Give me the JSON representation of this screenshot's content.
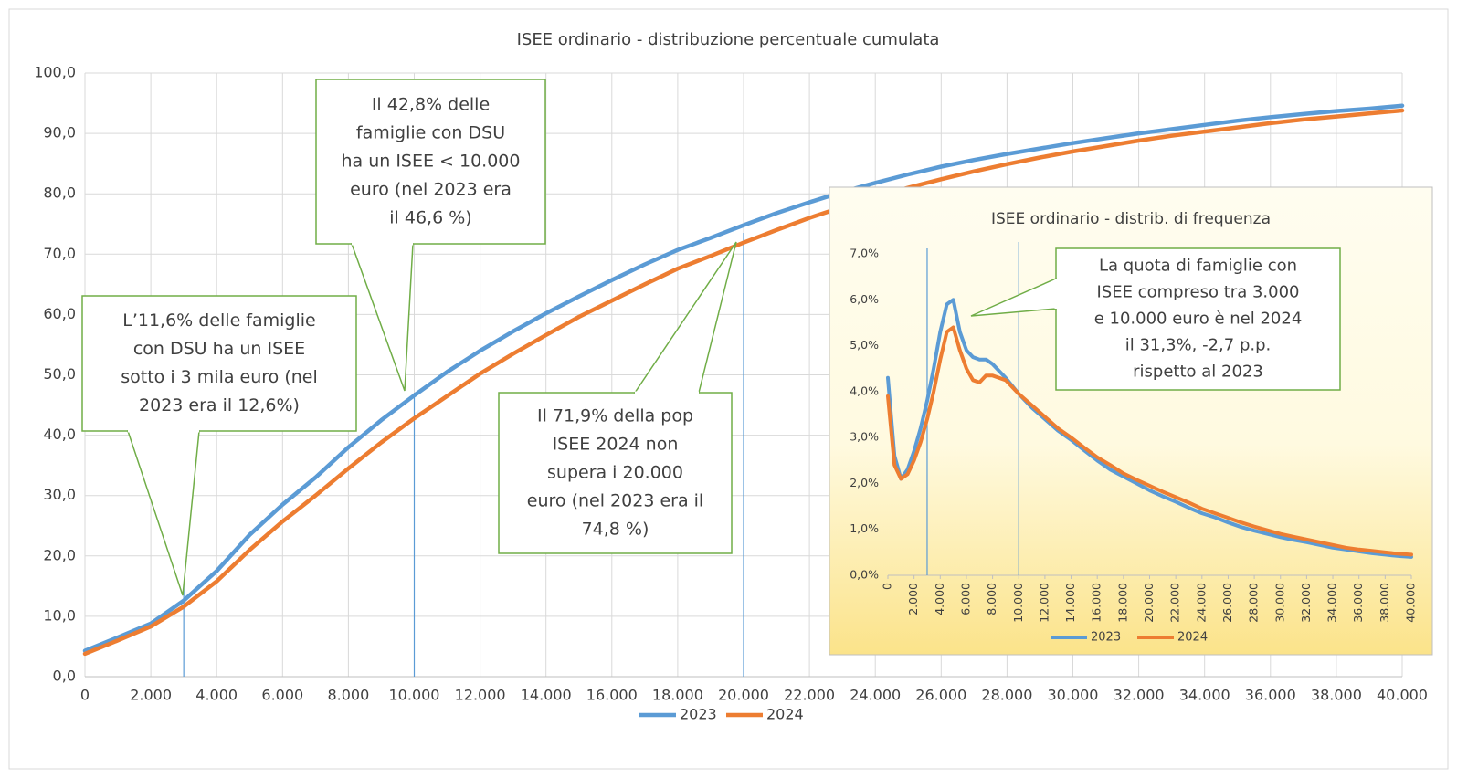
{
  "chart_data": [
    {
      "type": "line",
      "title": "ISEE ordinario - distribuzione  percentuale cumulata",
      "x": [
        0,
        1000,
        2000,
        3000,
        4000,
        5000,
        6000,
        7000,
        8000,
        9000,
        10000,
        11000,
        12000,
        13000,
        14000,
        15000,
        16000,
        17000,
        18000,
        19000,
        20000,
        21000,
        22000,
        23000,
        24000,
        25000,
        26000,
        27000,
        28000,
        29000,
        30000,
        31000,
        32000,
        33000,
        34000,
        35000,
        36000,
        37000,
        38000,
        39000,
        40000
      ],
      "series": [
        {
          "name": "2023",
          "color": "#5b9bd5",
          "values": [
            4.3,
            6.5,
            8.8,
            12.6,
            17.5,
            23.5,
            28.5,
            33,
            38,
            42.5,
            46.6,
            50.5,
            54,
            57.2,
            60.2,
            63,
            65.7,
            68.3,
            70.7,
            72.7,
            74.8,
            76.8,
            78.6,
            80.3,
            81.8,
            83.2,
            84.5,
            85.6,
            86.6,
            87.5,
            88.4,
            89.2,
            90,
            90.7,
            91.4,
            92.1,
            92.7,
            93.2,
            93.7,
            94.1,
            94.6
          ]
        },
        {
          "name": "2024",
          "color": "#ed7d31",
          "values": [
            3.8,
            6,
            8.3,
            11.6,
            15.8,
            21,
            25.7,
            30,
            34.5,
            38.8,
            42.8,
            46.5,
            50.2,
            53.5,
            56.6,
            59.6,
            62.3,
            65,
            67.6,
            69.7,
            71.9,
            74,
            76,
            77.8,
            79.5,
            81,
            82.4,
            83.7,
            84.9,
            86,
            87,
            87.9,
            88.8,
            89.6,
            90.3,
            91,
            91.7,
            92.3,
            92.8,
            93.3,
            93.8
          ]
        }
      ],
      "xlim": [
        0,
        40000
      ],
      "xticks": [
        0,
        {
          "value": 2000,
          "label": "2.000"
        },
        {
          "value": 4000,
          "label": "4.000"
        },
        {
          "value": 6000,
          "label": "6.000"
        },
        {
          "value": 8000,
          "label": "8.000"
        },
        {
          "value": 10000,
          "label": "10.000"
        },
        {
          "value": 12000,
          "label": "12.000"
        },
        {
          "value": 14000,
          "label": "14.000"
        },
        {
          "value": 16000,
          "label": "16.000"
        },
        {
          "value": 18000,
          "label": "18.000"
        },
        {
          "value": 20000,
          "label": "20.000"
        },
        {
          "value": 22000,
          "label": "22.000"
        },
        {
          "value": 24000,
          "label": "24.000"
        },
        {
          "value": 26000,
          "label": "26.000"
        },
        {
          "value": 28000,
          "label": "28.000"
        },
        {
          "value": 30000,
          "label": "30.000"
        },
        {
          "value": 32000,
          "label": "32.000"
        },
        {
          "value": 34000,
          "label": "34.000"
        },
        {
          "value": 36000,
          "label": "36.000"
        },
        {
          "value": 38000,
          "label": "38.000"
        },
        {
          "value": 40000,
          "label": "40.000"
        }
      ],
      "ylim": [
        0,
        100
      ],
      "yticks": [
        {
          "value": 0,
          "label": "0,0"
        },
        {
          "value": 10,
          "label": "10,0"
        },
        {
          "value": 20,
          "label": "20,0"
        },
        {
          "value": 30,
          "label": "30,0"
        },
        {
          "value": 40,
          "label": "40,0"
        },
        {
          "value": 50,
          "label": "50,0"
        },
        {
          "value": 60,
          "label": "60,0"
        },
        {
          "value": 70,
          "label": "70,0"
        },
        {
          "value": 80,
          "label": "80,0"
        },
        {
          "value": 90,
          "label": "90,0"
        },
        {
          "value": 100,
          "label": "100,0"
        }
      ],
      "grid": true,
      "legend": "bottom",
      "reference_lines": [
        3000,
        10000,
        20000
      ],
      "annotations": [
        {
          "lines": [
            "L’11,6% delle famiglie",
            "con DSU ha un ISEE",
            "sotto i 3 mila euro (nel",
            "2023 era il 12,6%)"
          ]
        },
        {
          "lines": [
            "Il 42,8% delle",
            "famiglie con DSU",
            "ha un ISEE < 10.000",
            "euro (nel 2023 era",
            "il 46,6 %)"
          ]
        },
        {
          "lines": [
            "Il 71,9% della pop",
            "ISEE 2024 non",
            "supera i 20.000",
            "euro (nel 2023 era il",
            "74,8 %)"
          ]
        }
      ]
    },
    {
      "type": "line",
      "title": "ISEE ordinario - distrib. di frequenza",
      "x": [
        0,
        500,
        1000,
        1500,
        2000,
        2500,
        3000,
        3500,
        4000,
        4500,
        5000,
        5500,
        6000,
        6500,
        7000,
        7500,
        8000,
        9000,
        10000,
        11000,
        12000,
        13000,
        14000,
        15000,
        16000,
        17000,
        18000,
        19000,
        20000,
        21000,
        22000,
        23000,
        24000,
        25000,
        26000,
        27000,
        28000,
        29000,
        30000,
        31000,
        32000,
        33000,
        34000,
        35000,
        36000,
        37000,
        38000,
        39000,
        40000
      ],
      "series": [
        {
          "name": "2023",
          "color": "#5b9bd5",
          "values": [
            4.3,
            2.6,
            2.1,
            2.3,
            2.7,
            3.2,
            3.8,
            4.5,
            5.3,
            5.9,
            6.0,
            5.3,
            4.9,
            4.75,
            4.7,
            4.7,
            4.6,
            4.3,
            3.95,
            3.65,
            3.4,
            3.15,
            2.95,
            2.72,
            2.5,
            2.3,
            2.15,
            2.0,
            1.85,
            1.72,
            1.6,
            1.47,
            1.35,
            1.26,
            1.15,
            1.05,
            0.97,
            0.9,
            0.83,
            0.77,
            0.72,
            0.66,
            0.6,
            0.56,
            0.52,
            0.48,
            0.45,
            0.42,
            0.4
          ]
        },
        {
          "name": "2024",
          "color": "#ed7d31",
          "values": [
            3.9,
            2.4,
            2.1,
            2.2,
            2.5,
            2.9,
            3.4,
            4.0,
            4.7,
            5.3,
            5.4,
            4.9,
            4.5,
            4.25,
            4.2,
            4.35,
            4.35,
            4.25,
            3.95,
            3.7,
            3.45,
            3.2,
            3.0,
            2.78,
            2.57,
            2.4,
            2.22,
            2.08,
            1.95,
            1.82,
            1.7,
            1.58,
            1.45,
            1.35,
            1.25,
            1.15,
            1.06,
            0.98,
            0.9,
            0.84,
            0.78,
            0.72,
            0.66,
            0.6,
            0.56,
            0.53,
            0.5,
            0.47,
            0.45
          ]
        }
      ],
      "xlim": [
        0,
        40000
      ],
      "xticks": [
        0,
        {
          "value": 2000,
          "label": "2.000"
        },
        {
          "value": 4000,
          "label": "4.000"
        },
        {
          "value": 6000,
          "label": "6.000"
        },
        {
          "value": 8000,
          "label": "8.000"
        },
        {
          "value": 10000,
          "label": "10.000"
        },
        {
          "value": 12000,
          "label": "12.000"
        },
        {
          "value": 14000,
          "label": "14.000"
        },
        {
          "value": 16000,
          "label": "16.000"
        },
        {
          "value": 18000,
          "label": "18.000"
        },
        {
          "value": 20000,
          "label": "20.000"
        },
        {
          "value": 22000,
          "label": "22.000"
        },
        {
          "value": 24000,
          "label": "24.000"
        },
        {
          "value": 26000,
          "label": "26.000"
        },
        {
          "value": 28000,
          "label": "28.000"
        },
        {
          "value": 30000,
          "label": "30.000"
        },
        {
          "value": 32000,
          "label": "32.000"
        },
        {
          "value": 34000,
          "label": "34.000"
        },
        {
          "value": 36000,
          "label": "36.000"
        },
        {
          "value": 38000,
          "label": "38.000"
        },
        {
          "value": 40000,
          "label": "40.000"
        }
      ],
      "ylim": [
        0,
        7
      ],
      "yticks": [
        {
          "value": 0,
          "label": "0,0%"
        },
        {
          "value": 1,
          "label": "1,0%"
        },
        {
          "value": 2,
          "label": "2,0%"
        },
        {
          "value": 3,
          "label": "3,0%"
        },
        {
          "value": 4,
          "label": "4,0%"
        },
        {
          "value": 5,
          "label": "5,0%"
        },
        {
          "value": 6,
          "label": "6,0%"
        },
        {
          "value": 7,
          "label": "7,0%"
        }
      ],
      "grid": false,
      "legend": "bottom",
      "reference_lines": [
        3000,
        10000
      ],
      "annotations": [
        {
          "lines": [
            "La quota di famiglie con",
            "ISEE compreso tra 3.000",
            "e 10.000 euro è nel 2024",
            "il 31,3%, -2,7 p.p.",
            "rispetto al 2023"
          ]
        }
      ]
    }
  ]
}
